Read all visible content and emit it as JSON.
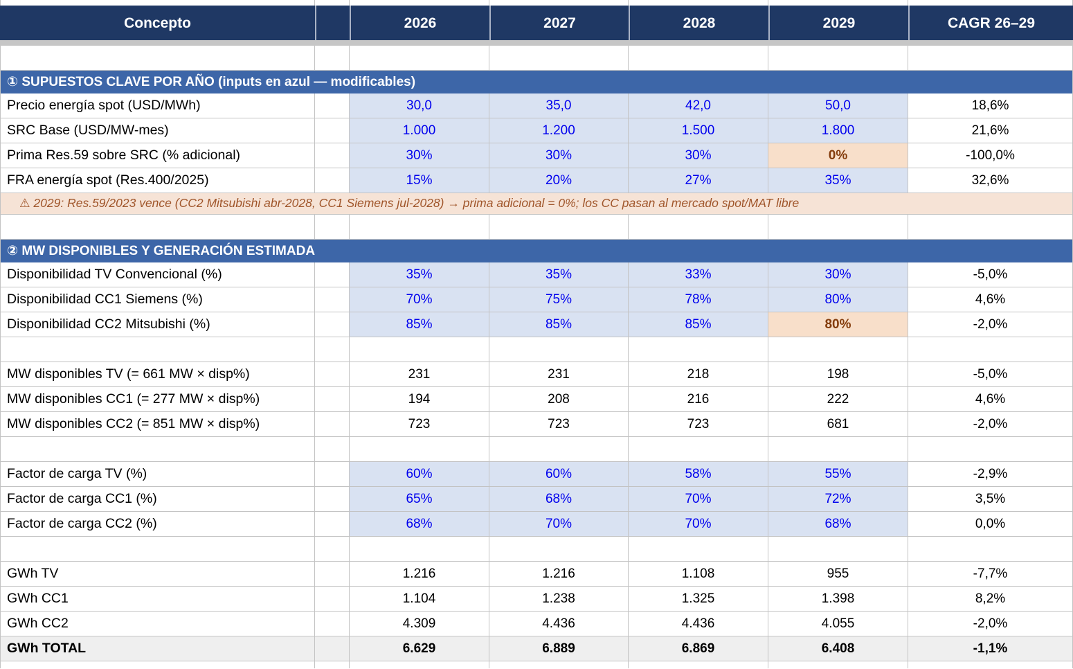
{
  "header": {
    "cells": [
      "Concepto",
      "",
      "2026",
      "2027",
      "2028",
      "2029",
      "CAGR 26–29"
    ]
  },
  "colors": {
    "header_bg": "#1F3864",
    "section_bg": "#3D66A8",
    "input_cell_bg": "#D9E2F2",
    "input_text": "#0000EE",
    "highlight_cell_bg": "#F8DFCA",
    "highlight_text": "#843C0C",
    "note_bg": "#F6E3D6",
    "note_text": "#A0562B",
    "total_row_bg": "#EFEFEF"
  },
  "rows": [
    {
      "type": "empty"
    },
    {
      "type": "section",
      "label": "① SUPUESTOS CLAVE POR AÑO  (inputs en azul — modificables)"
    },
    {
      "type": "data",
      "variant": "input",
      "label": "Precio energía spot (USD/MWh)",
      "values": [
        "30,0",
        "35,0",
        "42,0",
        "50,0"
      ],
      "cagr": "18,6%",
      "highlight": []
    },
    {
      "type": "data",
      "variant": "input",
      "label": "SRC Base (USD/MW-mes)",
      "values": [
        "1.000",
        "1.200",
        "1.500",
        "1.800"
      ],
      "cagr": "21,6%",
      "highlight": []
    },
    {
      "type": "data",
      "variant": "input",
      "label": "Prima Res.59 sobre SRC (% adicional)",
      "values": [
        "30%",
        "30%",
        "30%",
        "0%"
      ],
      "cagr": "-100,0%",
      "highlight": [
        3
      ]
    },
    {
      "type": "data",
      "variant": "input",
      "label": "FRA energía spot (Res.400/2025)",
      "values": [
        "15%",
        "20%",
        "27%",
        "35%"
      ],
      "cagr": "32,6%",
      "highlight": []
    },
    {
      "type": "note",
      "label": "⚠ 2029: Res.59/2023 vence (CC2 Mitsubishi abr-2028, CC1 Siemens jul-2028) → prima adicional = 0%; los CC pasan al mercado spot/MAT libre"
    },
    {
      "type": "empty"
    },
    {
      "type": "section",
      "label": "② MW DISPONIBLES Y GENERACIÓN ESTIMADA"
    },
    {
      "type": "data",
      "variant": "input",
      "label": "Disponibilidad TV Convencional (%)",
      "values": [
        "35%",
        "35%",
        "33%",
        "30%"
      ],
      "cagr": "-5,0%",
      "highlight": []
    },
    {
      "type": "data",
      "variant": "input",
      "label": "Disponibilidad CC1 Siemens (%)",
      "values": [
        "70%",
        "75%",
        "78%",
        "80%"
      ],
      "cagr": "4,6%",
      "highlight": []
    },
    {
      "type": "data",
      "variant": "input",
      "label": "Disponibilidad CC2 Mitsubishi (%)",
      "values": [
        "85%",
        "85%",
        "85%",
        "80%"
      ],
      "cagr": "-2,0%",
      "highlight": [
        3
      ]
    },
    {
      "type": "empty"
    },
    {
      "type": "data",
      "variant": "calc",
      "label": "MW disponibles TV (= 661 MW × disp%)",
      "values": [
        "231",
        "231",
        "218",
        "198"
      ],
      "cagr": "-5,0%",
      "highlight": []
    },
    {
      "type": "data",
      "variant": "calc",
      "label": "MW disponibles CC1 (= 277 MW × disp%)",
      "values": [
        "194",
        "208",
        "216",
        "222"
      ],
      "cagr": "4,6%",
      "highlight": []
    },
    {
      "type": "data",
      "variant": "calc",
      "label": "MW disponibles CC2 (= 851 MW × disp%)",
      "values": [
        "723",
        "723",
        "723",
        "681"
      ],
      "cagr": "-2,0%",
      "highlight": []
    },
    {
      "type": "empty"
    },
    {
      "type": "data",
      "variant": "input",
      "label": "Factor de carga TV (%)",
      "values": [
        "60%",
        "60%",
        "58%",
        "55%"
      ],
      "cagr": "-2,9%",
      "highlight": []
    },
    {
      "type": "data",
      "variant": "input",
      "label": "Factor de carga CC1 (%)",
      "values": [
        "65%",
        "68%",
        "70%",
        "72%"
      ],
      "cagr": "3,5%",
      "highlight": []
    },
    {
      "type": "data",
      "variant": "input",
      "label": "Factor de carga CC2 (%)",
      "values": [
        "68%",
        "70%",
        "70%",
        "68%"
      ],
      "cagr": "0,0%",
      "highlight": []
    },
    {
      "type": "empty"
    },
    {
      "type": "data",
      "variant": "calc",
      "label": "GWh TV",
      "values": [
        "1.216",
        "1.216",
        "1.108",
        "955"
      ],
      "cagr": "-7,7%",
      "highlight": []
    },
    {
      "type": "data",
      "variant": "calc",
      "label": "GWh CC1",
      "values": [
        "1.104",
        "1.238",
        "1.325",
        "1.398"
      ],
      "cagr": "8,2%",
      "highlight": []
    },
    {
      "type": "data",
      "variant": "calc",
      "label": "GWh CC2",
      "values": [
        "4.309",
        "4.436",
        "4.436",
        "4.055"
      ],
      "cagr": "-2,0%",
      "highlight": []
    },
    {
      "type": "data",
      "variant": "total",
      "label": "GWh TOTAL",
      "values": [
        "6.629",
        "6.889",
        "6.869",
        "6.408"
      ],
      "cagr": "-1,1%",
      "highlight": []
    },
    {
      "type": "partial"
    }
  ]
}
